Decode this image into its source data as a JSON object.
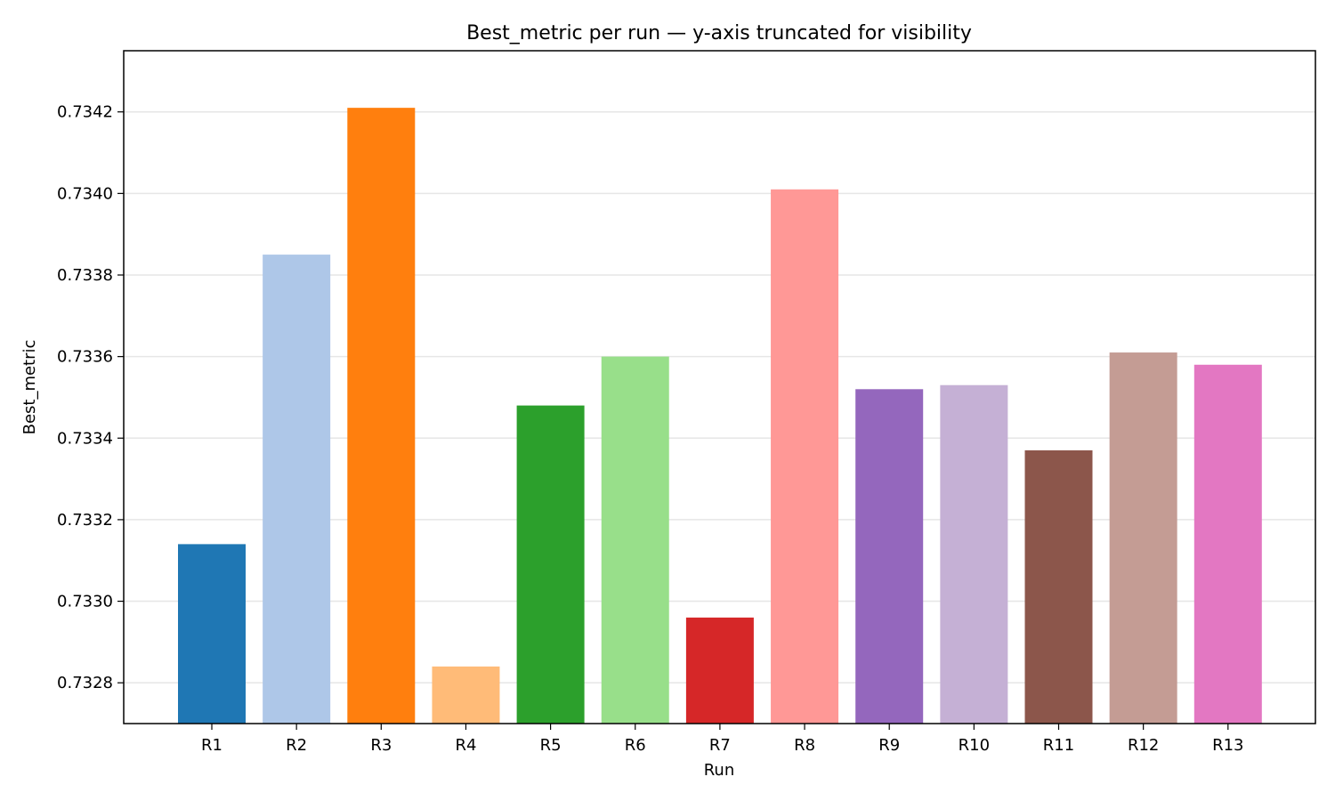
{
  "chart_data": {
    "type": "bar",
    "title": "Best_metric per run — y-axis truncated for visibility",
    "xlabel": "Run",
    "ylabel": "Best_metric",
    "categories": [
      "R1",
      "R2",
      "R3",
      "R4",
      "R5",
      "R6",
      "R7",
      "R8",
      "R9",
      "R10",
      "R11",
      "R12",
      "R13"
    ],
    "values": [
      0.73314,
      0.73385,
      0.73421,
      0.73284,
      0.73348,
      0.7336,
      0.73296,
      0.73401,
      0.73352,
      0.73353,
      0.73337,
      0.73361,
      0.73358
    ],
    "colors": [
      "#1f77b4",
      "#aec7e8",
      "#ff7f0e",
      "#ffbb78",
      "#2ca02c",
      "#98df8a",
      "#d62728",
      "#ff9896",
      "#9467bd",
      "#c5b0d5",
      "#8c564b",
      "#c49c94",
      "#e377c2"
    ],
    "ylim": [
      0.7327,
      0.73435
    ],
    "yticks": [
      0.7328,
      0.733,
      0.7332,
      0.7334,
      0.7336,
      0.7338,
      0.734,
      0.7342
    ],
    "ytick_labels": [
      "0.7328",
      "0.7330",
      "0.7332",
      "0.7334",
      "0.7336",
      "0.7338",
      "0.7340",
      "0.7342"
    ],
    "grid": "horizontal",
    "legend": "none"
  }
}
